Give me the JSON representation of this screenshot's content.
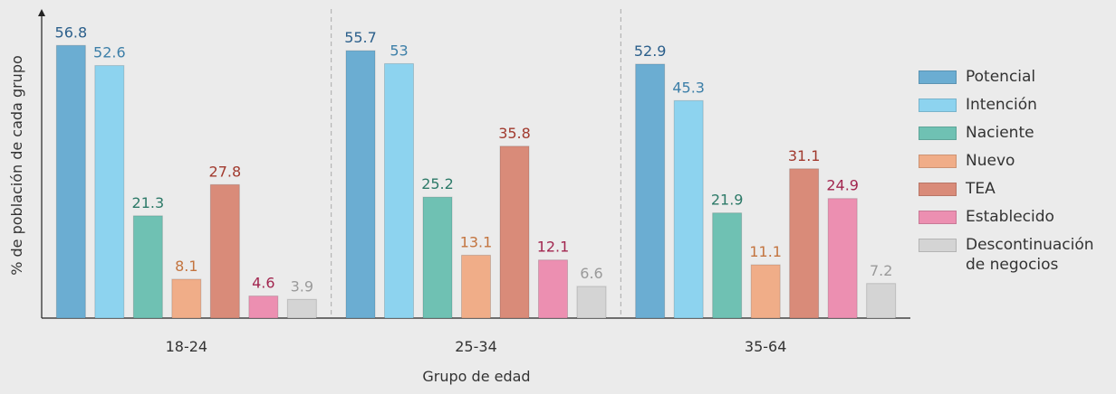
{
  "chart_data": {
    "type": "bar",
    "xlabel": "Grupo de edad",
    "ylabel": "% de población de cada grupo",
    "categories": [
      "18-24",
      "25-34",
      "35-64"
    ],
    "ylim": [
      0,
      64
    ],
    "series": [
      {
        "name": "Potencial",
        "color": "#6badd2",
        "label_color": "#2b5f8b",
        "values": [
          56.8,
          55.7,
          52.9
        ]
      },
      {
        "name": "Intención",
        "color": "#8dd3ef",
        "label_color": "#3d7fa8",
        "values": [
          52.6,
          53,
          45.3
        ]
      },
      {
        "name": "Naciente",
        "color": "#6fc1b3",
        "label_color": "#2d7a68",
        "values": [
          21.3,
          25.2,
          21.9
        ]
      },
      {
        "name": "Nuevo",
        "color": "#f0ad88",
        "label_color": "#c3743f",
        "values": [
          8.1,
          13.1,
          11.1
        ]
      },
      {
        "name": "TEA",
        "color": "#d98b79",
        "label_color": "#a13a2e",
        "values": [
          27.8,
          35.8,
          31.1
        ]
      },
      {
        "name": "Establecido",
        "color": "#ec8fb1",
        "label_color": "#a2264f",
        "values": [
          4.6,
          12.1,
          24.9
        ]
      },
      {
        "name": "Descontinuación de negocios",
        "color": "#d4d4d4",
        "label_color": "#9a9a9a",
        "values": [
          3.9,
          6.6,
          7.2
        ]
      }
    ]
  }
}
